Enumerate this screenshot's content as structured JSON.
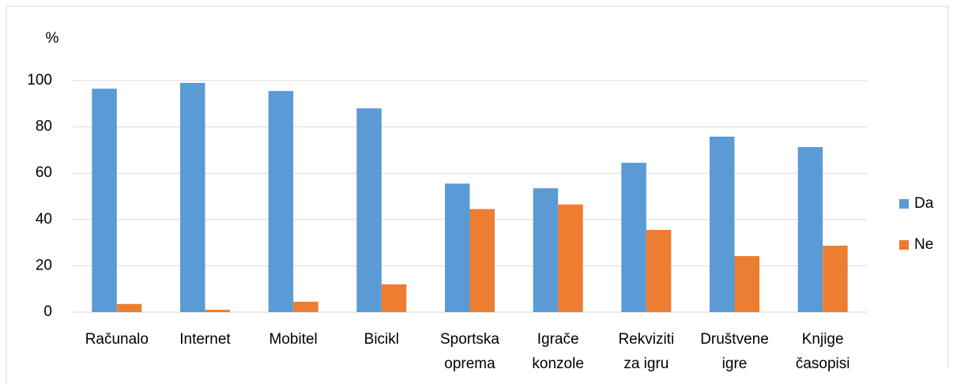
{
  "chart_data": {
    "type": "bar",
    "y_label": "%",
    "categories": [
      "Računalo",
      "Internet",
      "Mobitel",
      "Bicikl",
      "Sportska oprema",
      "Igrače konzole",
      "Rekviziti za igru",
      "Društvene igre",
      "Knjige časopisi"
    ],
    "series": [
      {
        "name": "Da",
        "color": "#5b9bd5",
        "values": [
          96.5,
          99,
          95.5,
          88,
          55.5,
          53.5,
          64.5,
          75.8,
          71.3
        ]
      },
      {
        "name": "Ne",
        "color": "#ed7d31",
        "values": [
          3.5,
          1,
          4.5,
          12,
          44.5,
          46.5,
          35.5,
          24.2,
          28.7
        ]
      }
    ],
    "ylim": [
      0,
      100
    ],
    "yticks": [
      0,
      20,
      40,
      60,
      80,
      100
    ],
    "grid": true,
    "legend": "right"
  }
}
